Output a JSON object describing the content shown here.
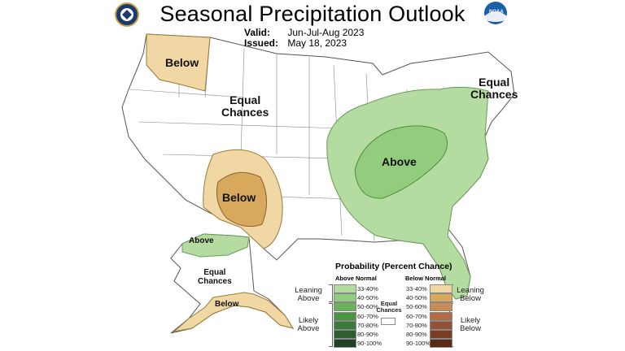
{
  "title": "Seasonal Precipitation Outlook",
  "valid_label": "Valid:",
  "valid_value": "Jun-Jul-Aug 2023",
  "issued_label": "Issued:",
  "issued_value": "May 18, 2023",
  "logos": {
    "left": "doc-seal-icon",
    "right": "noaa-logo-icon",
    "right_text": "NOAA"
  },
  "map_labels": {
    "northwest_below": "Below",
    "interior_equal": "Equal\nChances",
    "southwest_below": "Below",
    "northeast_equal": "Equal\nChances",
    "east_above": "Above",
    "alaska_above": "Above",
    "alaska_equal": "Equal\nChances",
    "alaska_below": "Below"
  },
  "legend": {
    "title": "Probability (Percent Chance)",
    "above_header": "Above Normal",
    "below_header": "Below Normal",
    "equal_label": "Equal\nChances",
    "above_groups": [
      {
        "label": "Leaning\nAbove"
      },
      {
        "label": "Likely\nAbove"
      }
    ],
    "below_groups": [
      {
        "label": "Leaning\nBelow"
      },
      {
        "label": "Likely\nBelow"
      }
    ],
    "above": [
      {
        "range": "33-40%",
        "color": "#b5dca0"
      },
      {
        "range": "40-50%",
        "color": "#93cc7d"
      },
      {
        "range": "50-60%",
        "color": "#6bb15a"
      },
      {
        "range": "60-70%",
        "color": "#4b9443"
      },
      {
        "range": "70-80%",
        "color": "#3b7a3a"
      },
      {
        "range": "80-90%",
        "color": "#2e5e2f"
      },
      {
        "range": "90-100%",
        "color": "#1e4222"
      }
    ],
    "below": [
      {
        "range": "33-40%",
        "color": "#f0d7a3"
      },
      {
        "range": "40-50%",
        "color": "#d8a85c"
      },
      {
        "range": "50-60%",
        "color": "#c98a55"
      },
      {
        "range": "60-70%",
        "color": "#b06d45"
      },
      {
        "range": "70-80%",
        "color": "#955138"
      },
      {
        "range": "80-90%",
        "color": "#7a3c22"
      },
      {
        "range": "90-100%",
        "color": "#5a2a14"
      }
    ]
  }
}
